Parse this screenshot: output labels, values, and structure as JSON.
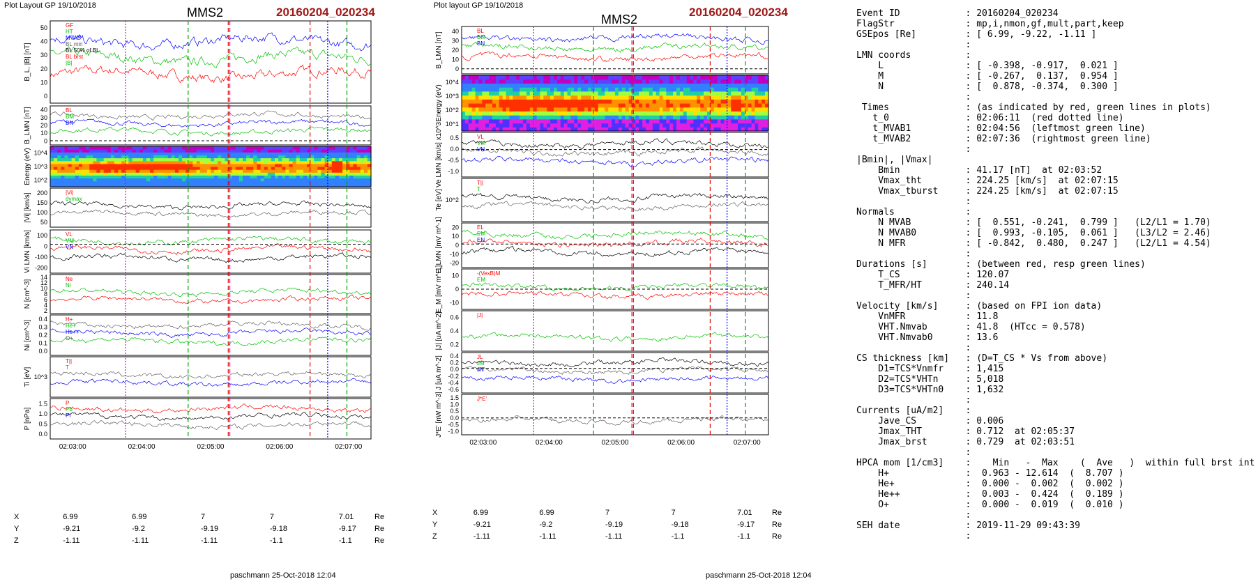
{
  "left_panel": {
    "layout_label": "Plot Layout GP 19/10/2018",
    "title": "MMS2",
    "event": "20160204_020234",
    "footer": "paschmann 25-Oct-2018 12:04",
    "time_ticks": [
      "02:03:00",
      "02:04:00",
      "02:05:00",
      "02:06:00",
      "02:07:00"
    ],
    "position_rows": [
      {
        "label": "X",
        "values": [
          "6.99",
          "6.99",
          "7",
          "7",
          "7.01"
        ],
        "unit": "Re"
      },
      {
        "label": "Y",
        "values": [
          "-9.21",
          "-9.2",
          "-9.19",
          "-9.18",
          "-9.17"
        ],
        "unit": "Re"
      },
      {
        "label": "Z",
        "values": [
          "-1.11",
          "-1.11",
          "-1.11",
          "-1.1",
          "-1.1"
        ],
        "unit": "Re"
      }
    ]
  },
  "right_panel": {
    "layout_label": "Plot layout GP 19/10/2018",
    "title": "MMS2",
    "event": "20160204_020234",
    "footer": "paschmann 25-Oct-2018 12:04",
    "time_ticks": [
      "02:03:00",
      "02:04:00",
      "02:05:00",
      "02:06:00",
      "02:07:00"
    ],
    "position_rows": [
      {
        "label": "X",
        "values": [
          "6.99",
          "6.99",
          "7",
          "7",
          "7.01"
        ],
        "unit": "Re"
      },
      {
        "label": "Y",
        "values": [
          "-9.21",
          "-9.2",
          "-9.19",
          "-9.18",
          "-9.17"
        ],
        "unit": "Re"
      },
      {
        "label": "Z",
        "values": [
          "-1.11",
          "-1.11",
          "-1.11",
          "-1.1",
          "-1.1"
        ],
        "unit": "Re"
      }
    ]
  },
  "chart_data": [
    {
      "type": "line",
      "panel": "left",
      "rows": [
        {
          "ylabel": "B_L, |B| [nT]",
          "ylim": [
            0,
            55
          ],
          "ticks": [
            "0",
            "10",
            "20",
            "30",
            "40",
            "50"
          ],
          "legend": [
            "GF",
            "HT",
            "MVAB",
            "BL min",
            "BL 50% of BL",
            "BL brst",
            "|B|"
          ]
        },
        {
          "ylabel": "B_LMN [nT]",
          "ylim": [
            -5,
            42
          ],
          "ticks": [
            "0",
            "10",
            "20",
            "30",
            "40"
          ],
          "legend": [
            "BL",
            "BM",
            "BN"
          ]
        },
        {
          "ylabel": "Energy (eV)",
          "ticks": [
            "10^2",
            "10^3",
            "10^4"
          ],
          "type": "heatmap"
        },
        {
          "ylabel": "|Vi| [km/s]",
          "ylim": [
            30,
            220
          ],
          "ticks": [
            "50",
            "100",
            "150",
            "200"
          ],
          "legend": [
            "|Vi|",
            "dvmax"
          ]
        },
        {
          "ylabel": "Vi LMN [km/s]",
          "ylim": [
            -220,
            110
          ],
          "ticks": [
            "-200",
            "-100",
            "0",
            "100"
          ],
          "legend": [
            "VL",
            "VM",
            "VN"
          ]
        },
        {
          "ylabel": "N [cm^-3]",
          "ylim": [
            0,
            15
          ],
          "ticks": [
            "2",
            "4",
            "6",
            "8",
            "10",
            "12",
            "14"
          ],
          "legend": [
            "Ne",
            "Ni"
          ]
        },
        {
          "ylabel": "Ni [cm^-3]",
          "ylim": [
            0,
            0.42
          ],
          "ticks": [
            "0.0",
            "0.1",
            "0.2",
            "0.3",
            "0.4"
          ],
          "legend": [
            "H+",
            "He+",
            "He++",
            "O+"
          ]
        },
        {
          "ylabel": "Ti [eV]",
          "ticks": [
            "10^3"
          ],
          "legend": [
            "T||",
            "T"
          ]
        },
        {
          "ylabel": "P [nPa]",
          "ylim": [
            0,
            1.6
          ],
          "ticks": [
            "0.0",
            "0.5",
            "1.0",
            "1.5"
          ],
          "legend": [
            "P",
            "Pb",
            "Pi"
          ]
        }
      ]
    },
    {
      "type": "line",
      "panel": "right",
      "rows": [
        {
          "ylabel": "B_LMN [nT]",
          "ylim": [
            -5,
            42
          ],
          "ticks": [
            "0",
            "10",
            "20",
            "30",
            "40"
          ],
          "legend": [
            "BL",
            "BM",
            "BN"
          ]
        },
        {
          "ylabel": "Energy (eV)",
          "ticks": [
            "10^1",
            "10^2",
            "10^3",
            "10^4"
          ],
          "type": "heatmap"
        },
        {
          "ylabel": "Ve LMN [km/s] x10^3",
          "ylim": [
            -1.2,
            0.75
          ],
          "ticks": [
            "-1.0",
            "-0.5",
            "0.0",
            "0.5"
          ],
          "legend": [
            "VL",
            "VM",
            "VN"
          ]
        },
        {
          "ylabel": "Te [eV]",
          "ticks": [
            "10^2"
          ],
          "legend": [
            "T||",
            "T"
          ]
        },
        {
          "ylabel": "E_LMN [mV m^-1]",
          "ylim": [
            -28,
            25
          ],
          "ticks": [
            "-20",
            "-10",
            "0",
            "10",
            "20"
          ],
          "legend": [
            "EL",
            "EM",
            "EN"
          ]
        },
        {
          "ylabel": "E_M [mV m^-1]",
          "ylim": [
            -15,
            15
          ],
          "ticks": [
            "-10",
            "0",
            "10"
          ],
          "legend": [
            "-(VexB)M",
            "EM"
          ]
        },
        {
          "ylabel": "|J| [uA m^-2]",
          "ylim": [
            0,
            0.7
          ],
          "ticks": [
            "0.2",
            "0.4",
            "0.6"
          ],
          "legend": [
            "|J|"
          ]
        },
        {
          "ylabel": "J [uA m^-2]",
          "ylim": [
            -0.7,
            0.45
          ],
          "ticks": [
            "-0.6",
            "-0.4",
            "-0.2",
            "0.0",
            "0.2",
            "0.4"
          ],
          "legend": [
            "JL",
            "JM",
            "JN"
          ]
        },
        {
          "ylabel": "J*E' [nW m^-3]",
          "ylim": [
            -1.15,
            1.6
          ],
          "ticks": [
            "-1.0",
            "-0.5",
            "0.0",
            "0.5",
            "1.0",
            "1.5"
          ],
          "legend": [
            "J*E'"
          ]
        }
      ]
    }
  ],
  "info": {
    "lines": [
      {
        "k": "Event ID",
        "v": ": 20160204_020234"
      },
      {
        "k": "FlagStr",
        "v": ": mp,i,nmon,gf,mult,part,keep"
      },
      {
        "k": "GSEpos [Re]",
        "v": ": [ 6.99, -9.22, -1.11 ]"
      },
      {
        "k": "",
        "v": ":"
      },
      {
        "k": "LMN coords",
        "v": ":"
      },
      {
        "k": "    L",
        "v": ": [ -0.398, -0.917,  0.021 ]"
      },
      {
        "k": "    M",
        "v": ": [ -0.267,  0.137,  0.954 ]"
      },
      {
        "k": "    N",
        "v": ": [  0.878, -0.374,  0.300 ]"
      },
      {
        "k": "",
        "v": ":"
      },
      {
        "k": " Times",
        "v": ": (as indicated by red, green lines in plots)"
      },
      {
        "k": "   t_0",
        "v": ": 02:06:11  (red dotted line)"
      },
      {
        "k": "   t_MVAB1",
        "v": ": 02:04:56  (leftmost green line)"
      },
      {
        "k": "   t_MVAB2",
        "v": ": 02:07:36  (rightmost green line)"
      },
      {
        "k": "",
        "v": ":"
      },
      {
        "k": "|Bmin|, |Vmax|",
        "v": ""
      },
      {
        "k": "    Bmin",
        "v": ": 41.17 [nT]  at 02:03:52"
      },
      {
        "k": "    Vmax_tht",
        "v": ": 224.25 [km/s]  at 02:07:15"
      },
      {
        "k": "    Vmax_tburst",
        "v": ": 224.25 [km/s]  at 02:07:15"
      },
      {
        "k": "",
        "v": ":"
      },
      {
        "k": "Normals",
        "v": ":"
      },
      {
        "k": "    N MVAB",
        "v": ": [  0.551, -0.241,  0.799 ]   (L2/L1 = 1.70)"
      },
      {
        "k": "    N MVAB0",
        "v": ": [  0.993, -0.105,  0.061 ]   (L3/L2 = 2.46)"
      },
      {
        "k": "    N MFR",
        "v": ": [ -0.842,  0.480,  0.247 ]   (L2/L1 = 4.54)"
      },
      {
        "k": "",
        "v": ":"
      },
      {
        "k": "Durations [s]",
        "v": ": (between red, resp green lines)"
      },
      {
        "k": "    T_CS",
        "v": ": 120.07"
      },
      {
        "k": "    T_MFR/HT",
        "v": ": 240.14"
      },
      {
        "k": "",
        "v": ":"
      },
      {
        "k": "Velocity [km/s]",
        "v": ": (based on FPI ion data)"
      },
      {
        "k": "    VnMFR",
        "v": ": 11.8"
      },
      {
        "k": "    VHT.Nmvab",
        "v": ": 41.8  (HTcc = 0.578)"
      },
      {
        "k": "    VHT.Nmvab0",
        "v": ": 13.6"
      },
      {
        "k": "",
        "v": ":"
      },
      {
        "k": "CS thickness [km]",
        "v": ": (D=T_CS * Vs from above)"
      },
      {
        "k": "    D1=TCS*Vnmfr",
        "v": ": 1,415"
      },
      {
        "k": "    D2=TCS*VHTn",
        "v": ": 5,018"
      },
      {
        "k": "    D3=TCS*VHTn0",
        "v": ": 1,632"
      },
      {
        "k": "",
        "v": ":"
      },
      {
        "k": "Currents [uA/m2]",
        "v": ":"
      },
      {
        "k": "    Jave_CS",
        "v": ": 0.006"
      },
      {
        "k": "    Jmax_THT",
        "v": ": 0.712  at 02:05:37"
      },
      {
        "k": "    Jmax_brst",
        "v": ": 0.729  at 02:03:51"
      },
      {
        "k": "",
        "v": ":"
      },
      {
        "k": "HPCA mom [1/cm3]",
        "v": ":    Min   -  Max    (  Ave   )  within full brst int"
      },
      {
        "k": "    H+",
        "v": ":  0.963 - 12.614  (  8.707 )"
      },
      {
        "k": "    He+",
        "v": ":  0.000 -  0.002  (  0.002 )"
      },
      {
        "k": "    He++",
        "v": ":  0.003 -  0.424  (  0.189 )"
      },
      {
        "k": "    O+",
        "v": ":  0.000 -  0.019  (  0.010 )"
      },
      {
        "k": "",
        "v": ":"
      },
      {
        "k": "SEH date",
        "v": ": 2019-11-29 09:43:39"
      },
      {
        "k": "",
        "v": ":"
      }
    ]
  }
}
